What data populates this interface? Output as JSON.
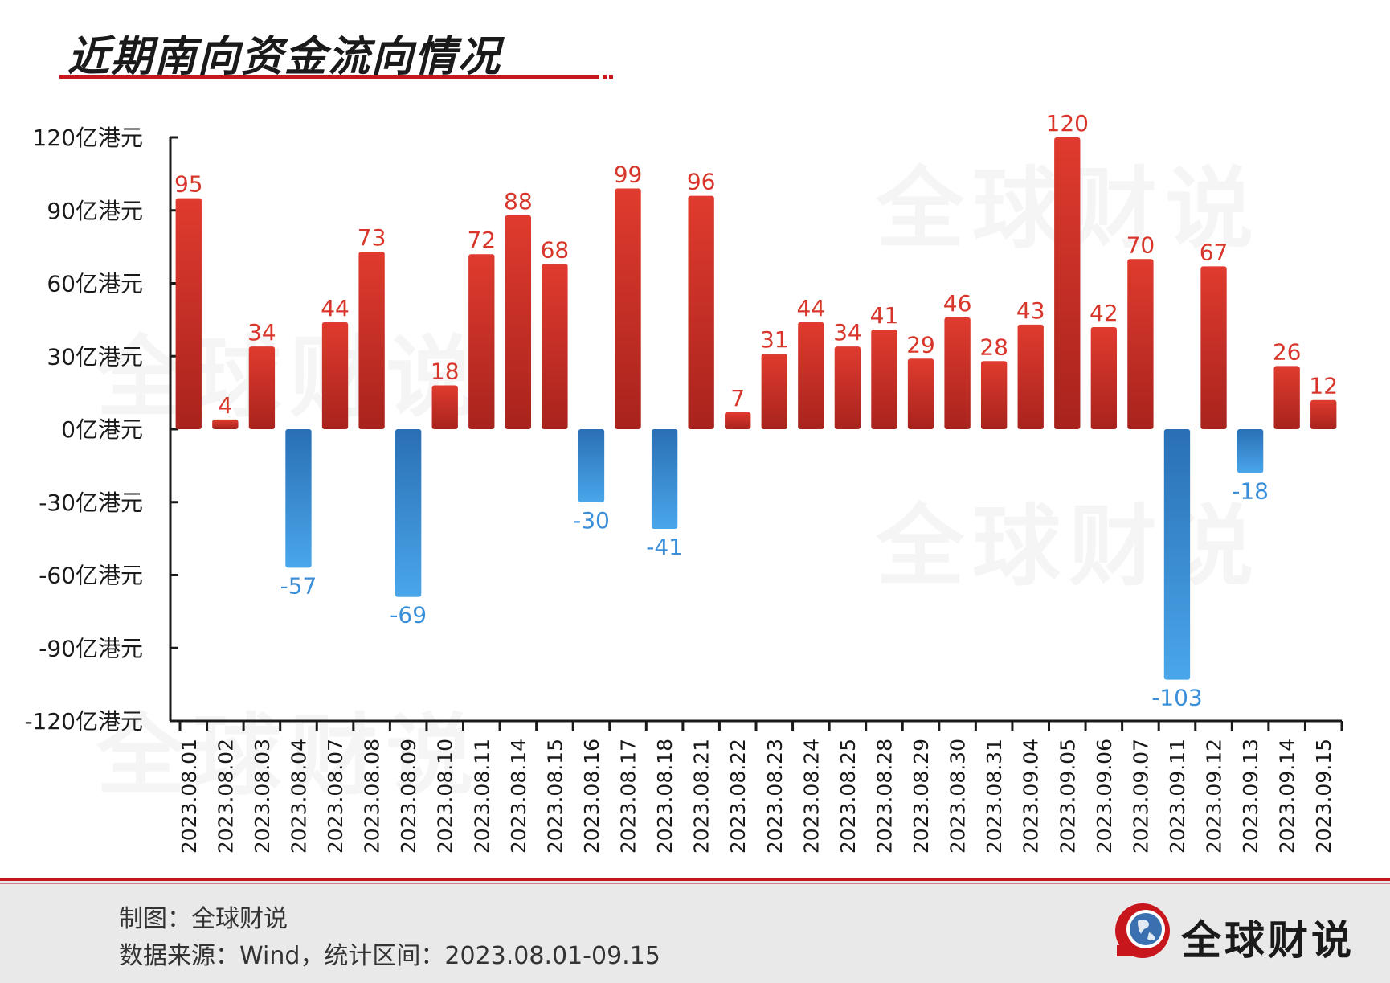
{
  "header": {
    "title": "近期南向资金流向情况"
  },
  "watermark_text": "全球财说",
  "chart_data": {
    "type": "bar",
    "title": "近期南向资金流向情况",
    "categories": [
      "2023.08.01",
      "2023.08.02",
      "2023.08.03",
      "2023.08.04",
      "2023.08.07",
      "2023.08.08",
      "2023.08.09",
      "2023.08.10",
      "2023.08.11",
      "2023.08.14",
      "2023.08.15",
      "2023.08.16",
      "2023.08.17",
      "2023.08.18",
      "2023.08.21",
      "2023.08.22",
      "2023.08.23",
      "2023.08.24",
      "2023.08.25",
      "2023.08.28",
      "2023.08.29",
      "2023.08.30",
      "2023.08.31",
      "2023.09.04",
      "2023.09.05",
      "2023.09.06",
      "2023.09.07",
      "2023.09.11",
      "2023.09.12",
      "2023.09.13",
      "2023.09.14",
      "2023.09.15"
    ],
    "values": [
      95,
      4,
      34,
      -57,
      44,
      73,
      -69,
      18,
      72,
      88,
      68,
      -30,
      99,
      -41,
      96,
      7,
      31,
      44,
      34,
      41,
      29,
      46,
      28,
      43,
      120,
      42,
      70,
      -103,
      67,
      -18,
      26,
      12
    ],
    "ylim": [
      -120,
      120
    ],
    "yticks": [
      120,
      90,
      60,
      30,
      0,
      -30,
      -60,
      -90,
      -120
    ],
    "ytick_labels": [
      "120亿港元",
      "90亿港元",
      "60亿港元",
      "30亿港元",
      "0亿港元",
      "-30亿港元",
      "-60亿港元",
      "-90亿港元",
      "-120亿港元"
    ],
    "xlabel": "",
    "ylabel": "",
    "grid": false,
    "legend": "none",
    "data_labels": true,
    "colors": {
      "positive": "#d9362b",
      "positive_dark": "#a8231d",
      "negative": "#2f7bc4",
      "negative_light": "#4aa6ea",
      "positive_label": "#d9362b",
      "negative_label": "#3b8fd9",
      "axis": "#1a1a1a"
    }
  },
  "footer": {
    "maker": "制图：全球财说",
    "source": "数据来源：Wind，统计区间：2023.08.01-09.15",
    "logo_text": "全球财说",
    "logo_icon": "globe-logo-icon",
    "accent": "#c8161d"
  }
}
